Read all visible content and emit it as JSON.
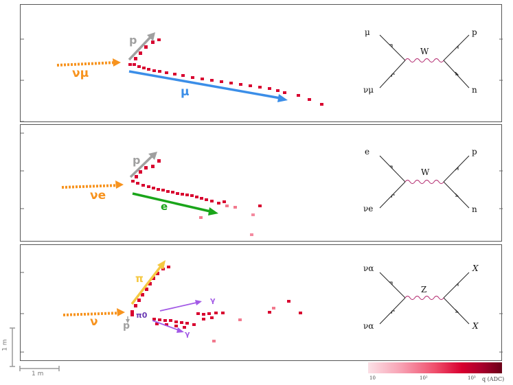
{
  "panels": [
    {
      "id": "numu-cc",
      "labels": {
        "neutrino": "νμ",
        "proton": "p",
        "lepton": "μ"
      },
      "feynman": {
        "top_left": "μ",
        "top_right": "p",
        "bottom_left": "νμ",
        "bottom_right": "n",
        "boson": "W"
      }
    },
    {
      "id": "nue-cc",
      "labels": {
        "neutrino": "νe",
        "proton": "p",
        "lepton": "e"
      },
      "feynman": {
        "top_left": "e",
        "top_right": "p",
        "bottom_left": "νe",
        "bottom_right": "n",
        "boson": "W"
      }
    },
    {
      "id": "nc",
      "labels": {
        "neutrino": "ν",
        "proton": "p",
        "pion": "π",
        "pi0": "π0",
        "gamma1": "γ",
        "gamma2": "γ"
      },
      "feynman": {
        "top_left": "να",
        "top_right": "X",
        "bottom_left": "να",
        "bottom_right": "X",
        "boson": "Z"
      }
    }
  ],
  "scale_bars": {
    "vertical": "1 m",
    "horizontal": "1 m"
  },
  "colorbar": {
    "ticks": [
      "10",
      "10²",
      "10³"
    ],
    "label": "q (ADC)"
  },
  "colors": {
    "orange": "#f7931e",
    "blue": "#3b8ee8",
    "green": "#1aa51a",
    "gray": "#a0a0a0",
    "yellow": "#f5c842",
    "purple": "#a259e6",
    "hit": "#d8002f"
  }
}
